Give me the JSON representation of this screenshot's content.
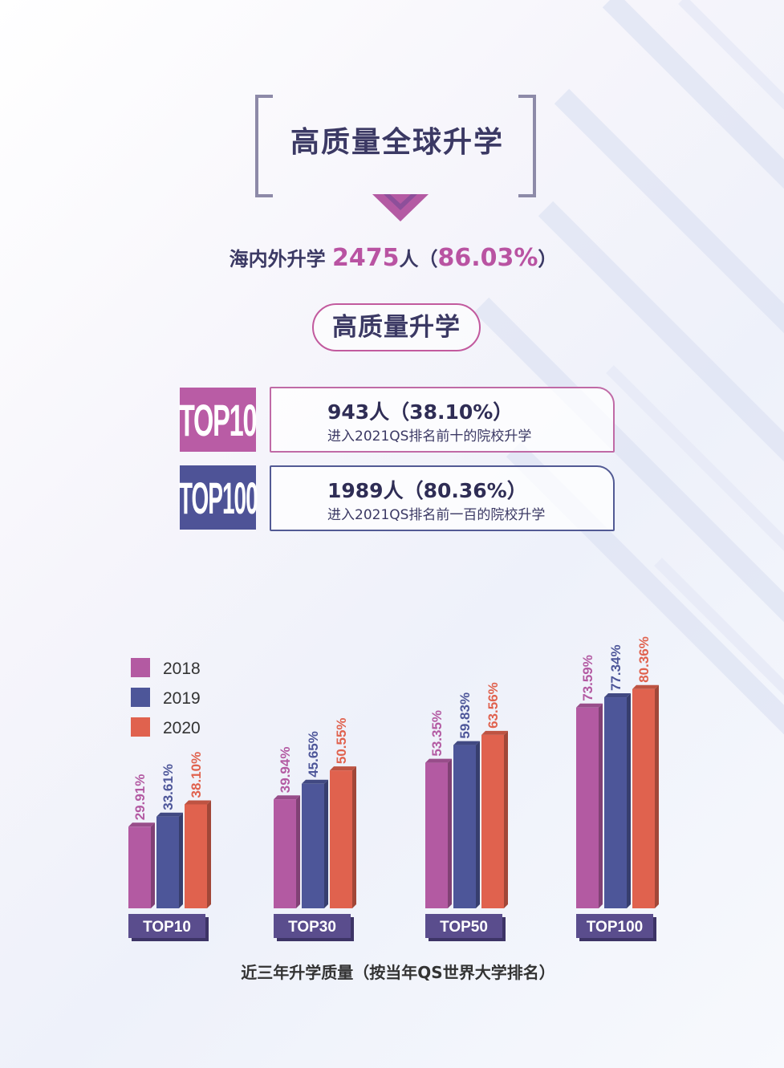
{
  "header": {
    "title": "高质量全球升学",
    "summary_prefix": "海内外升学 ",
    "summary_count": "2475",
    "summary_mid": "人（",
    "summary_percent": "86.03%",
    "summary_suffix": "）",
    "subheading": "高质量升学"
  },
  "stats": [
    {
      "tag": "TOP10",
      "headline": "943人（38.10%）",
      "detail": "进入2021QS排名前十的院校升学"
    },
    {
      "tag": "TOP100",
      "headline": "1989人（80.36%）",
      "detail": "进入2021QS排名前一百的院校升学"
    }
  ],
  "colors": {
    "s2018": "#b35aa2",
    "s2019": "#4d5699",
    "s2020": "#e0624e",
    "label_bg": "#5a4d8d"
  },
  "chart_data": {
    "type": "bar",
    "title": "近三年升学质量（按当年QS世界大学排名）",
    "categories": [
      "TOP10",
      "TOP30",
      "TOP50",
      "TOP100"
    ],
    "series": [
      {
        "name": "2018",
        "values": [
          29.91,
          39.94,
          53.35,
          73.59
        ],
        "labels": [
          "29.91%",
          "39.94%",
          "53.35%",
          "73.59%"
        ]
      },
      {
        "name": "2019",
        "values": [
          33.61,
          45.65,
          59.83,
          77.34
        ],
        "labels": [
          "33.61%",
          "45.65%",
          "59.83%",
          "77.34%"
        ]
      },
      {
        "name": "2020",
        "values": [
          38.1,
          50.55,
          63.56,
          80.36
        ],
        "labels": [
          "38.10%",
          "50.55%",
          "63.56%",
          "80.36%"
        ]
      }
    ],
    "legend_position": "top-left",
    "ylim": [
      0,
      100
    ]
  }
}
